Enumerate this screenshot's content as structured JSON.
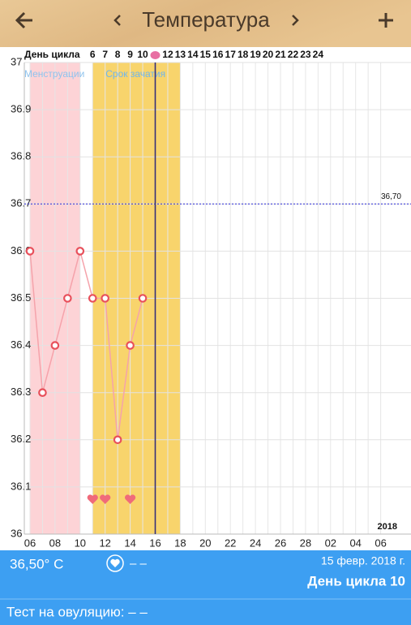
{
  "header": {
    "title": "Температура"
  },
  "chart_data": {
    "type": "line",
    "cycle_label": "День цикла",
    "cycle_days": [
      null,
      null,
      null,
      null,
      null,
      "6",
      "7",
      "8",
      "9",
      "10",
      null,
      "12",
      "13",
      "14",
      "15",
      "16",
      "17",
      "18",
      "19",
      "20",
      "21",
      "22",
      "23",
      "24",
      null,
      null,
      null,
      null,
      null
    ],
    "categories": [
      "06",
      null,
      "08",
      null,
      "10",
      null,
      "12",
      null,
      "14",
      null,
      "16",
      null,
      "18",
      null,
      "20",
      null,
      "22",
      null,
      "24",
      null,
      "26",
      null,
      "28",
      null,
      "02",
      null,
      "04",
      null,
      "06"
    ],
    "values": [
      36.6,
      36.3,
      36.4,
      36.5,
      36.6,
      36.5,
      36.5,
      36.2,
      36.4,
      36.5,
      null,
      null,
      null,
      null,
      null,
      null,
      null,
      null,
      null,
      null,
      null,
      null,
      null,
      null,
      null,
      null,
      null,
      null,
      null
    ],
    "color": "#f5a3ab",
    "marker_color": "#e8505b",
    "ylim": [
      36,
      37
    ],
    "yticks": [
      36,
      36.1,
      36.2,
      36.3,
      36.4,
      36.5,
      36.6,
      36.7,
      36.8,
      36.9,
      37
    ],
    "grid": true,
    "bands": [
      {
        "label": "Менструации",
        "from": 0,
        "to": 4,
        "color": "#fdd3d6",
        "label_color": "#8fc3ee"
      },
      {
        "label": "Срок зачатия",
        "from": 5,
        "to": 12,
        "color": "#f8d46c",
        "label_color": "#6fb6ee"
      }
    ],
    "threshold": {
      "value": 36.7,
      "label": "36,70",
      "color": "#2a2ad8"
    },
    "today": 10,
    "hearts": [
      5,
      6,
      8
    ],
    "year": "2018"
  },
  "footer": {
    "temperature": "36,50° C",
    "sex": "– –",
    "date": "15 февр. 2018 г.",
    "cycle_day": "День цикла 10",
    "ovulation_test": "Тест на овуляцию: – –"
  }
}
